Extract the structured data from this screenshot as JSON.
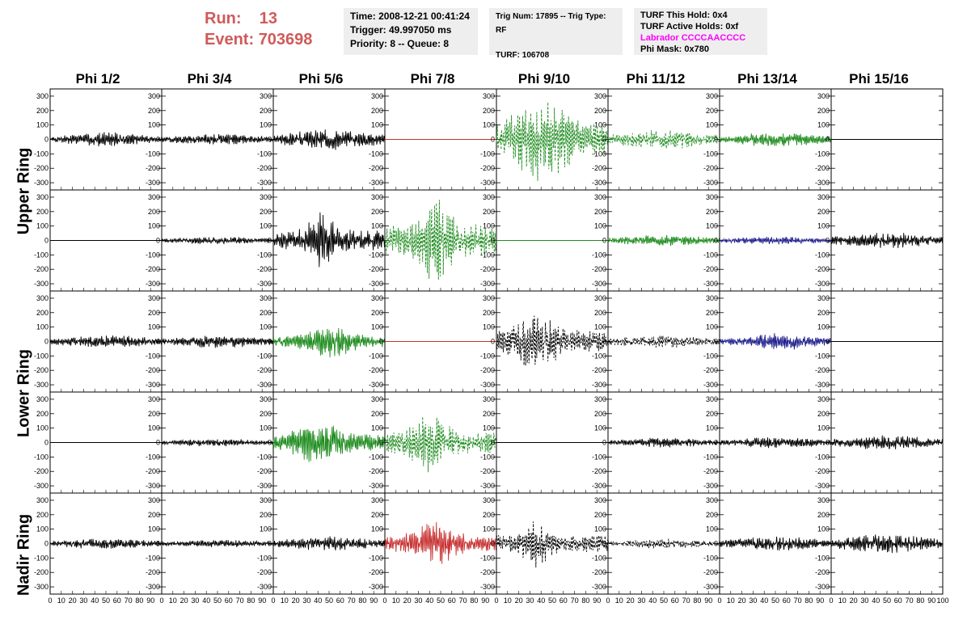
{
  "header": {
    "run_label": "Run:",
    "run_value": "13",
    "event_label": "Event:",
    "event_value": "703698",
    "box1": {
      "time": "Time: 2008-12-21 00:41:24",
      "trigger": "Trigger: 49.997050 ms",
      "priority": "Priority: 8 -- Queue: 8"
    },
    "box2": {
      "trig": "Trig Num: 17895 -- Trig Type: RF",
      "turf": "TURF: 106708"
    },
    "box3": {
      "hold": "TURF This Hold: 0x4",
      "active": "TURF Active Holds: 0xf",
      "labrador": "Labrador CCCCAACCCC",
      "phimask": "Phi Mask: 0x780"
    }
  },
  "chart_data": {
    "type": "line",
    "columns": [
      "Phi 1/2",
      "Phi 3/4",
      "Phi 5/6",
      "Phi 7/8",
      "Phi 9/10",
      "Phi 11/12",
      "Phi 13/14",
      "Phi 15/16"
    ],
    "rings": [
      {
        "name": "Upper Ring",
        "rows": [
          0,
          1
        ]
      },
      {
        "name": "Lower Ring",
        "rows": [
          2,
          3
        ]
      },
      {
        "name": "Nadir Ring",
        "rows": [
          4
        ]
      }
    ],
    "ylim": [
      -350,
      350
    ],
    "yticks": [
      -300,
      -200,
      -100,
      0,
      100,
      200,
      300
    ],
    "xlim": [
      0,
      100
    ],
    "xticks": [
      0,
      10,
      20,
      30,
      40,
      50,
      60,
      70,
      80,
      90,
      100
    ],
    "colors": {
      "black": "#000000",
      "green": "#1e8c1e",
      "red": "#c83232",
      "blue": "#1c1c8c",
      "flat_red": "#c83232"
    },
    "panels": [
      [
        {
          "color": "black",
          "style": "solid",
          "amp": 45,
          "center": 50,
          "width": 80,
          "seed": 1
        },
        {
          "color": "black",
          "style": "solid",
          "amp": 35,
          "center": 50,
          "width": 80,
          "seed": 2
        },
        {
          "color": "black",
          "style": "solid",
          "amp": 65,
          "center": 50,
          "width": 80,
          "seed": 3
        },
        {
          "color": "red",
          "style": "flat",
          "amp": 0,
          "center": 50,
          "width": 80,
          "seed": 4
        },
        {
          "color": "green",
          "style": "dashed",
          "amp": 260,
          "center": 40,
          "width": 55,
          "seed": 5
        },
        {
          "color": "green",
          "style": "dashed",
          "amp": 60,
          "center": 50,
          "width": 80,
          "seed": 6
        },
        {
          "color": "green",
          "style": "solid",
          "amp": 45,
          "center": 50,
          "width": 80,
          "seed": 7
        },
        {
          "color": "black",
          "style": "flat",
          "amp": 0,
          "center": 50,
          "width": 80,
          "seed": 8
        }
      ],
      [
        {
          "color": "black",
          "style": "flat",
          "amp": 0,
          "center": 50,
          "width": 80,
          "seed": 9
        },
        {
          "color": "black",
          "style": "solid",
          "amp": 25,
          "center": 50,
          "width": 80,
          "seed": 10
        },
        {
          "color": "black",
          "style": "solid",
          "amp": 180,
          "center": 45,
          "width": 28,
          "seed": 11
        },
        {
          "color": "green",
          "style": "dashed",
          "amp": 280,
          "center": 45,
          "width": 30,
          "seed": 12
        },
        {
          "color": "green",
          "style": "flat",
          "amp": 0,
          "center": 50,
          "width": 80,
          "seed": 13
        },
        {
          "color": "green",
          "style": "solid",
          "amp": 35,
          "center": 50,
          "width": 80,
          "seed": 14
        },
        {
          "color": "blue",
          "style": "solid",
          "amp": 25,
          "center": 50,
          "width": 80,
          "seed": 15
        },
        {
          "color": "black",
          "style": "solid",
          "amp": 50,
          "center": 50,
          "width": 80,
          "seed": 16
        }
      ],
      [
        {
          "color": "black",
          "style": "solid",
          "amp": 40,
          "center": 50,
          "width": 80,
          "seed": 17
        },
        {
          "color": "black",
          "style": "solid",
          "amp": 40,
          "center": 50,
          "width": 80,
          "seed": 18
        },
        {
          "color": "green",
          "style": "solid",
          "amp": 100,
          "center": 50,
          "width": 45,
          "seed": 19
        },
        {
          "color": "red",
          "style": "flat",
          "amp": 0,
          "center": 50,
          "width": 80,
          "seed": 20
        },
        {
          "color": "black",
          "style": "dashed",
          "amp": 190,
          "center": 35,
          "width": 40,
          "seed": 21
        },
        {
          "color": "black",
          "style": "dashed",
          "amp": 40,
          "center": 50,
          "width": 80,
          "seed": 22
        },
        {
          "color": "blue",
          "style": "solid",
          "amp": 55,
          "center": 55,
          "width": 60,
          "seed": 23
        },
        {
          "color": "black",
          "style": "flat",
          "amp": 0,
          "center": 50,
          "width": 80,
          "seed": 24
        }
      ],
      [
        {
          "color": "black",
          "style": "flat",
          "amp": 0,
          "center": 50,
          "width": 80,
          "seed": 25
        },
        {
          "color": "black",
          "style": "solid",
          "amp": 25,
          "center": 50,
          "width": 80,
          "seed": 26
        },
        {
          "color": "green",
          "style": "solid",
          "amp": 140,
          "center": 40,
          "width": 45,
          "seed": 27
        },
        {
          "color": "green",
          "style": "dashed",
          "amp": 190,
          "center": 40,
          "width": 35,
          "seed": 28
        },
        {
          "color": "black",
          "style": "flat",
          "amp": 0,
          "center": 50,
          "width": 80,
          "seed": 29
        },
        {
          "color": "black",
          "style": "solid",
          "amp": 30,
          "center": 50,
          "width": 80,
          "seed": 30
        },
        {
          "color": "black",
          "style": "solid",
          "amp": 35,
          "center": 50,
          "width": 80,
          "seed": 31
        },
        {
          "color": "black",
          "style": "solid",
          "amp": 45,
          "center": 50,
          "width": 80,
          "seed": 32
        }
      ],
      [
        {
          "color": "black",
          "style": "solid",
          "amp": 35,
          "center": 50,
          "width": 80,
          "seed": 33
        },
        {
          "color": "black",
          "style": "solid",
          "amp": 25,
          "center": 50,
          "width": 80,
          "seed": 34
        },
        {
          "color": "black",
          "style": "solid",
          "amp": 45,
          "center": 50,
          "width": 80,
          "seed": 35
        },
        {
          "color": "red",
          "style": "solid",
          "amp": 140,
          "center": 45,
          "width": 40,
          "seed": 36
        },
        {
          "color": "black",
          "style": "dashed",
          "amp": 150,
          "center": 35,
          "width": 25,
          "seed": 37
        },
        {
          "color": "black",
          "style": "dashed",
          "amp": 30,
          "center": 50,
          "width": 80,
          "seed": 38
        },
        {
          "color": "black",
          "style": "solid",
          "amp": 45,
          "center": 50,
          "width": 80,
          "seed": 39
        },
        {
          "color": "black",
          "style": "solid",
          "amp": 60,
          "center": 50,
          "width": 80,
          "seed": 40
        }
      ]
    ]
  }
}
